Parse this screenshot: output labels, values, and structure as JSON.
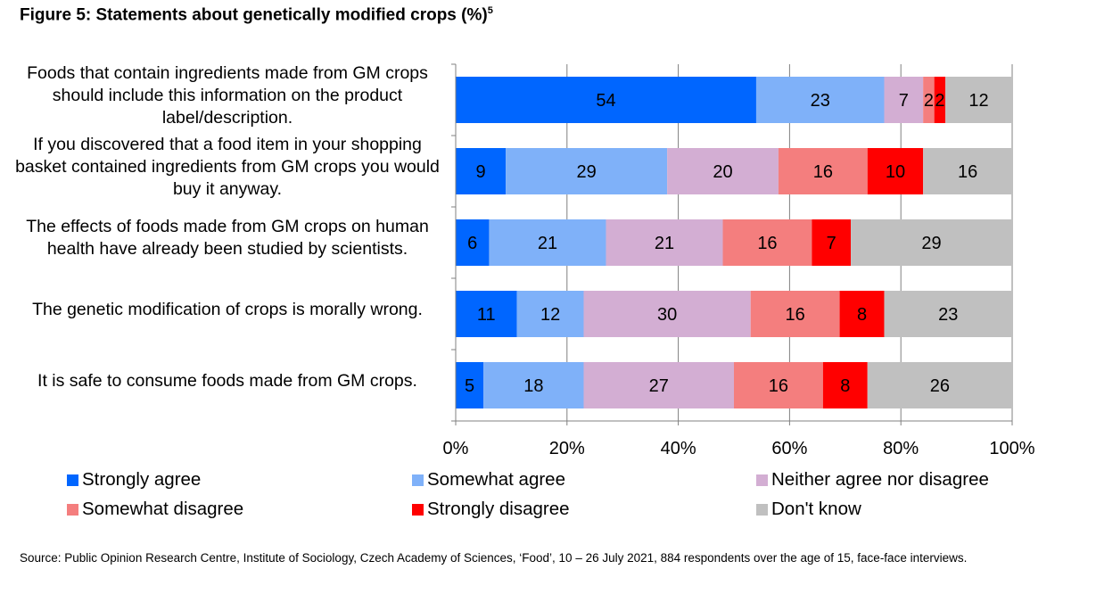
{
  "figure": {
    "title": "Figure 5: Statements about genetically modified crops (%)",
    "footnote_marker": "5"
  },
  "chart_data": {
    "type": "bar",
    "orientation": "horizontal",
    "stacked": true,
    "categories": [
      "Foods that contain ingredients made from GM crops should include this information on the product label/description.",
      "If you discovered that a food item in your shopping basket contained ingredients from GM crops you would buy it anyway.",
      "The effects of foods made from GM crops on human health have already been studied by scientists.",
      "The genetic modification of crops is morally wrong.",
      "It is safe to consume foods made from GM crops."
    ],
    "series": [
      {
        "name": "Strongly agree",
        "color": "#0066ff",
        "values": [
          54,
          9,
          6,
          11,
          5
        ]
      },
      {
        "name": "Somewhat agree",
        "color": "#7fb1f9",
        "values": [
          23,
          29,
          21,
          12,
          18
        ]
      },
      {
        "name": "Neither agree nor disagree",
        "color": "#d3aed3",
        "values": [
          7,
          20,
          21,
          30,
          27
        ]
      },
      {
        "name": "Somewhat disagree",
        "color": "#f47e7e",
        "values": [
          2,
          16,
          16,
          16,
          16
        ]
      },
      {
        "name": "Strongly disagree",
        "color": "#ff0000",
        "values": [
          2,
          10,
          7,
          8,
          8
        ]
      },
      {
        "name": "Don't know",
        "color": "#c0c0c0",
        "values": [
          12,
          16,
          29,
          23,
          26
        ]
      }
    ],
    "xlim": [
      0,
      100
    ],
    "x_ticks": [
      "0%",
      "20%",
      "40%",
      "60%",
      "80%",
      "100%"
    ],
    "grid": true,
    "legend_position": "bottom"
  },
  "source": "Source: Public Opinion Research Centre, Institute of Sociology, Czech Academy of Sciences, ‘Food’, 10 – 26 July 2021, 884 respondents over the age of 15, face-face interviews."
}
